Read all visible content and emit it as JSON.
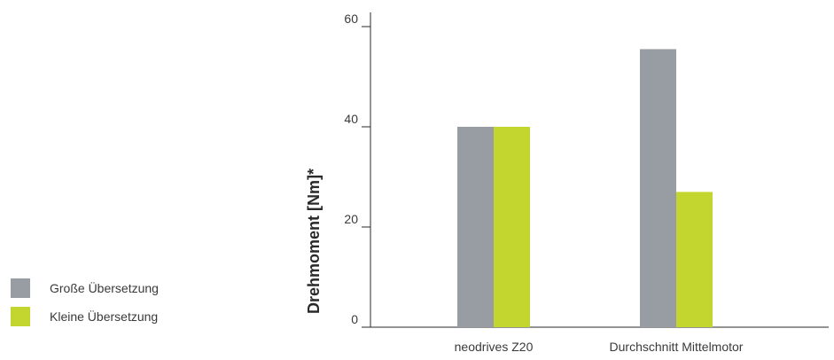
{
  "chart_data": {
    "type": "bar",
    "categories": [
      "neodrives Z20",
      "Durchschnitt Mittelmotor"
    ],
    "series": [
      {
        "name": "Große Übersetzung",
        "values": [
          40,
          55.5
        ],
        "color": "#979da2"
      },
      {
        "name": "Kleine Übersetzung",
        "values": [
          40,
          27
        ],
        "color": "#c3d52f"
      }
    ],
    "ylabel": "Drehmoment [Nm]*",
    "xlabel": "",
    "ylim": [
      0,
      60
    ],
    "yticks": [
      0,
      20,
      40,
      60
    ],
    "grid": false,
    "legend_position": "left"
  }
}
